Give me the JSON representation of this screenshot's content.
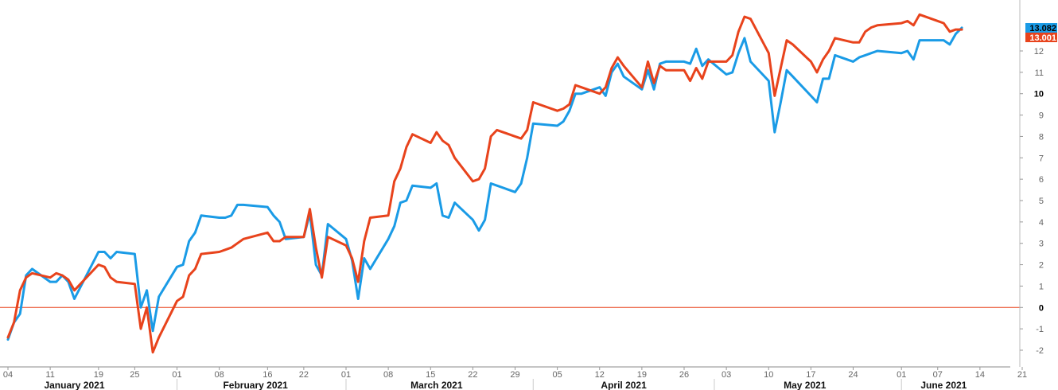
{
  "chart_data": {
    "type": "line",
    "title": "",
    "xlabel": "",
    "ylabel": "",
    "ylim": [
      -2.6,
      13.8
    ],
    "grid": false,
    "legend": "none",
    "x_range": [
      "2021-01-04",
      "2021-06-21"
    ],
    "y_ticks": [
      -2,
      -1,
      0,
      1,
      2,
      3,
      4,
      5,
      6,
      7,
      8,
      9,
      10,
      11,
      12
    ],
    "y_tick_labels": [
      "-2",
      "-1",
      "0",
      "1",
      "2",
      "3",
      "4",
      "5",
      "6",
      "7",
      "8",
      "9",
      "10",
      "11",
      "12"
    ],
    "y_tick_bold": [
      0,
      10
    ],
    "x_ticks": [
      {
        "date": "2021-01-04",
        "label": "04"
      },
      {
        "date": "2021-01-11",
        "label": "11"
      },
      {
        "date": "2021-01-19",
        "label": "19"
      },
      {
        "date": "2021-01-25",
        "label": "25"
      },
      {
        "date": "2021-02-01",
        "label": "01"
      },
      {
        "date": "2021-02-08",
        "label": "08"
      },
      {
        "date": "2021-02-16",
        "label": "16"
      },
      {
        "date": "2021-02-22",
        "label": "22"
      },
      {
        "date": "2021-03-01",
        "label": "01"
      },
      {
        "date": "2021-03-08",
        "label": "08"
      },
      {
        "date": "2021-03-15",
        "label": "15"
      },
      {
        "date": "2021-03-22",
        "label": "22"
      },
      {
        "date": "2021-03-29",
        "label": "29"
      },
      {
        "date": "2021-04-05",
        "label": "05"
      },
      {
        "date": "2021-04-12",
        "label": "12"
      },
      {
        "date": "2021-04-19",
        "label": "19"
      },
      {
        "date": "2021-04-26",
        "label": "26"
      },
      {
        "date": "2021-05-03",
        "label": "03"
      },
      {
        "date": "2021-05-10",
        "label": "10"
      },
      {
        "date": "2021-05-17",
        "label": "17"
      },
      {
        "date": "2021-05-24",
        "label": "24"
      },
      {
        "date": "2021-06-01",
        "label": "01"
      },
      {
        "date": "2021-06-07",
        "label": "07"
      },
      {
        "date": "2021-06-14",
        "label": "14"
      },
      {
        "date": "2021-06-21",
        "label": "21"
      }
    ],
    "month_labels": [
      {
        "label": "January 2021",
        "center": "2021-01-15"
      },
      {
        "label": "February 2021",
        "center": "2021-02-14"
      },
      {
        "label": "March 2021",
        "center": "2021-03-16"
      },
      {
        "label": "April 2021",
        "center": "2021-04-16"
      },
      {
        "label": "May 2021",
        "center": "2021-05-16"
      },
      {
        "label": "June 2021",
        "center": "2021-06-08"
      }
    ],
    "month_separators": [
      "2021-02-01",
      "2021-03-01",
      "2021-04-01",
      "2021-05-01",
      "2021-06-01"
    ],
    "zero_line": {
      "y": 0,
      "color": "#e8431c"
    },
    "series": [
      {
        "color": "#1a9be6",
        "last_label": "13.082",
        "x": [
          "2021-01-04",
          "2021-01-05",
          "2021-01-06",
          "2021-01-07",
          "2021-01-08",
          "2021-01-11",
          "2021-01-12",
          "2021-01-13",
          "2021-01-14",
          "2021-01-15",
          "2021-01-19",
          "2021-01-20",
          "2021-01-21",
          "2021-01-22",
          "2021-01-25",
          "2021-01-26",
          "2021-01-27",
          "2021-01-28",
          "2021-01-29",
          "2021-02-01",
          "2021-02-02",
          "2021-02-03",
          "2021-02-04",
          "2021-02-05",
          "2021-02-08",
          "2021-02-09",
          "2021-02-10",
          "2021-02-11",
          "2021-02-12",
          "2021-02-16",
          "2021-02-17",
          "2021-02-18",
          "2021-02-19",
          "2021-02-22",
          "2021-02-23",
          "2021-02-24",
          "2021-02-25",
          "2021-02-26",
          "2021-03-01",
          "2021-03-02",
          "2021-03-03",
          "2021-03-04",
          "2021-03-05",
          "2021-03-08",
          "2021-03-09",
          "2021-03-10",
          "2021-03-11",
          "2021-03-12",
          "2021-03-15",
          "2021-03-16",
          "2021-03-17",
          "2021-03-18",
          "2021-03-19",
          "2021-03-22",
          "2021-03-23",
          "2021-03-24",
          "2021-03-25",
          "2021-03-26",
          "2021-03-29",
          "2021-03-30",
          "2021-03-31",
          "2021-04-01",
          "2021-04-05",
          "2021-04-06",
          "2021-04-07",
          "2021-04-08",
          "2021-04-09",
          "2021-04-12",
          "2021-04-13",
          "2021-04-14",
          "2021-04-15",
          "2021-04-16",
          "2021-04-19",
          "2021-04-20",
          "2021-04-21",
          "2021-04-22",
          "2021-04-23",
          "2021-04-26",
          "2021-04-27",
          "2021-04-28",
          "2021-04-29",
          "2021-04-30",
          "2021-05-03",
          "2021-05-04",
          "2021-05-05",
          "2021-05-06",
          "2021-05-07",
          "2021-05-10",
          "2021-05-11",
          "2021-05-12",
          "2021-05-13",
          "2021-05-14",
          "2021-05-17",
          "2021-05-18",
          "2021-05-19",
          "2021-05-20",
          "2021-05-21",
          "2021-05-24",
          "2021-05-25",
          "2021-05-26",
          "2021-05-27",
          "2021-05-28",
          "2021-06-01",
          "2021-06-02",
          "2021-06-03",
          "2021-06-04",
          "2021-06-07",
          "2021-06-08",
          "2021-06-09",
          "2021-06-10",
          "2021-06-11"
        ],
        "values": [
          -1.5,
          -0.7,
          -0.3,
          1.5,
          1.8,
          1.2,
          1.2,
          1.5,
          1.2,
          0.4,
          2.6,
          2.6,
          2.3,
          2.6,
          2.5,
          0.0,
          0.8,
          -1.1,
          0.5,
          1.9,
          2.0,
          3.1,
          3.5,
          4.3,
          4.2,
          4.2,
          4.3,
          4.8,
          4.8,
          4.7,
          4.3,
          4.0,
          3.2,
          3.3,
          4.4,
          2.0,
          1.5,
          3.9,
          3.2,
          2.2,
          0.4,
          2.3,
          1.8,
          3.2,
          3.8,
          4.9,
          5.0,
          5.7,
          5.6,
          5.8,
          4.3,
          4.2,
          4.9,
          4.1,
          3.6,
          4.1,
          5.8,
          5.7,
          5.4,
          5.8,
          7.0,
          8.6,
          8.5,
          8.7,
          9.2,
          10.0,
          10.0,
          10.3,
          9.9,
          11.0,
          11.4,
          10.8,
          10.2,
          11.1,
          10.2,
          11.4,
          11.5,
          11.5,
          11.4,
          12.1,
          11.3,
          11.6,
          10.9,
          11.0,
          11.9,
          12.6,
          11.5,
          10.6,
          8.2,
          9.6,
          11.1,
          10.8,
          9.9,
          9.6,
          10.7,
          10.7,
          11.8,
          11.5,
          11.7,
          11.8,
          11.9,
          12.0,
          11.9,
          12.0,
          11.6,
          12.5,
          12.5,
          12.5,
          12.3,
          12.8,
          13.082
        ]
      },
      {
        "color": "#e8431c",
        "last_label": "13.001",
        "x": [
          "2021-01-04",
          "2021-01-05",
          "2021-01-06",
          "2021-01-07",
          "2021-01-08",
          "2021-01-11",
          "2021-01-12",
          "2021-01-13",
          "2021-01-14",
          "2021-01-15",
          "2021-01-19",
          "2021-01-20",
          "2021-01-21",
          "2021-01-22",
          "2021-01-25",
          "2021-01-26",
          "2021-01-27",
          "2021-01-28",
          "2021-01-29",
          "2021-02-01",
          "2021-02-02",
          "2021-02-03",
          "2021-02-04",
          "2021-02-05",
          "2021-02-08",
          "2021-02-09",
          "2021-02-10",
          "2021-02-11",
          "2021-02-12",
          "2021-02-16",
          "2021-02-17",
          "2021-02-18",
          "2021-02-19",
          "2021-02-22",
          "2021-02-23",
          "2021-02-24",
          "2021-02-25",
          "2021-02-26",
          "2021-03-01",
          "2021-03-02",
          "2021-03-03",
          "2021-03-04",
          "2021-03-05",
          "2021-03-08",
          "2021-03-09",
          "2021-03-10",
          "2021-03-11",
          "2021-03-12",
          "2021-03-15",
          "2021-03-16",
          "2021-03-17",
          "2021-03-18",
          "2021-03-19",
          "2021-03-22",
          "2021-03-23",
          "2021-03-24",
          "2021-03-25",
          "2021-03-26",
          "2021-03-29",
          "2021-03-30",
          "2021-03-31",
          "2021-04-01",
          "2021-04-05",
          "2021-04-06",
          "2021-04-07",
          "2021-04-08",
          "2021-04-09",
          "2021-04-12",
          "2021-04-13",
          "2021-04-14",
          "2021-04-15",
          "2021-04-16",
          "2021-04-19",
          "2021-04-20",
          "2021-04-21",
          "2021-04-22",
          "2021-04-23",
          "2021-04-26",
          "2021-04-27",
          "2021-04-28",
          "2021-04-29",
          "2021-04-30",
          "2021-05-03",
          "2021-05-04",
          "2021-05-05",
          "2021-05-06",
          "2021-05-07",
          "2021-05-10",
          "2021-05-11",
          "2021-05-12",
          "2021-05-13",
          "2021-05-14",
          "2021-05-17",
          "2021-05-18",
          "2021-05-19",
          "2021-05-20",
          "2021-05-21",
          "2021-05-24",
          "2021-05-25",
          "2021-05-26",
          "2021-05-27",
          "2021-05-28",
          "2021-06-01",
          "2021-06-02",
          "2021-06-03",
          "2021-06-04",
          "2021-06-07",
          "2021-06-08",
          "2021-06-09",
          "2021-06-10",
          "2021-06-11"
        ],
        "values": [
          -1.4,
          -0.7,
          0.8,
          1.4,
          1.6,
          1.4,
          1.6,
          1.5,
          1.3,
          0.8,
          2.0,
          1.9,
          1.4,
          1.2,
          1.1,
          -1.0,
          0.0,
          -2.1,
          -1.4,
          0.3,
          0.5,
          1.5,
          1.8,
          2.5,
          2.6,
          2.7,
          2.8,
          3.0,
          3.2,
          3.5,
          3.1,
          3.1,
          3.3,
          3.3,
          4.6,
          2.8,
          1.4,
          3.3,
          2.9,
          2.3,
          1.2,
          3.1,
          4.2,
          4.3,
          5.9,
          6.5,
          7.5,
          8.1,
          7.7,
          8.2,
          7.8,
          7.6,
          7.0,
          5.9,
          6.0,
          6.5,
          8.0,
          8.3,
          8.0,
          7.9,
          8.3,
          9.6,
          9.2,
          9.3,
          9.5,
          10.4,
          10.3,
          10.0,
          10.3,
          11.2,
          11.7,
          11.3,
          10.3,
          11.5,
          10.5,
          11.3,
          11.1,
          11.1,
          10.6,
          11.2,
          10.7,
          11.5,
          11.5,
          11.8,
          12.9,
          13.6,
          13.5,
          11.9,
          9.9,
          11.2,
          12.5,
          12.3,
          11.5,
          11.0,
          11.6,
          12.0,
          12.6,
          12.4,
          12.4,
          12.9,
          13.1,
          13.2,
          13.3,
          13.4,
          13.2,
          13.7,
          13.4,
          13.3,
          12.9,
          13.0,
          13.001
        ]
      }
    ]
  }
}
